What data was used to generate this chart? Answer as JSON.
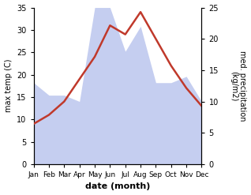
{
  "months": [
    "Jan",
    "Feb",
    "Mar",
    "Apr",
    "May",
    "Jun",
    "Jul",
    "Aug",
    "Sep",
    "Oct",
    "Nov",
    "Dec"
  ],
  "temperature": [
    9,
    11,
    14,
    19,
    24,
    31,
    29,
    34,
    28,
    22,
    17,
    13
  ],
  "precipitation": [
    13,
    11,
    11,
    10,
    25,
    25,
    18,
    22,
    13,
    13,
    14,
    10
  ],
  "temp_color": "#c0392b",
  "precip_fill_color": "#c5cef0",
  "temp_ylim": [
    0,
    35
  ],
  "precip_ylim": [
    0,
    25
  ],
  "temp_yticks": [
    0,
    5,
    10,
    15,
    20,
    25,
    30,
    35
  ],
  "precip_yticks": [
    0,
    5,
    10,
    15,
    20,
    25
  ],
  "ylabel_left": "max temp (C)",
  "ylabel_right": "med. precipitation\n(kg/m2)",
  "xlabel": "date (month)",
  "background_color": "#ffffff"
}
